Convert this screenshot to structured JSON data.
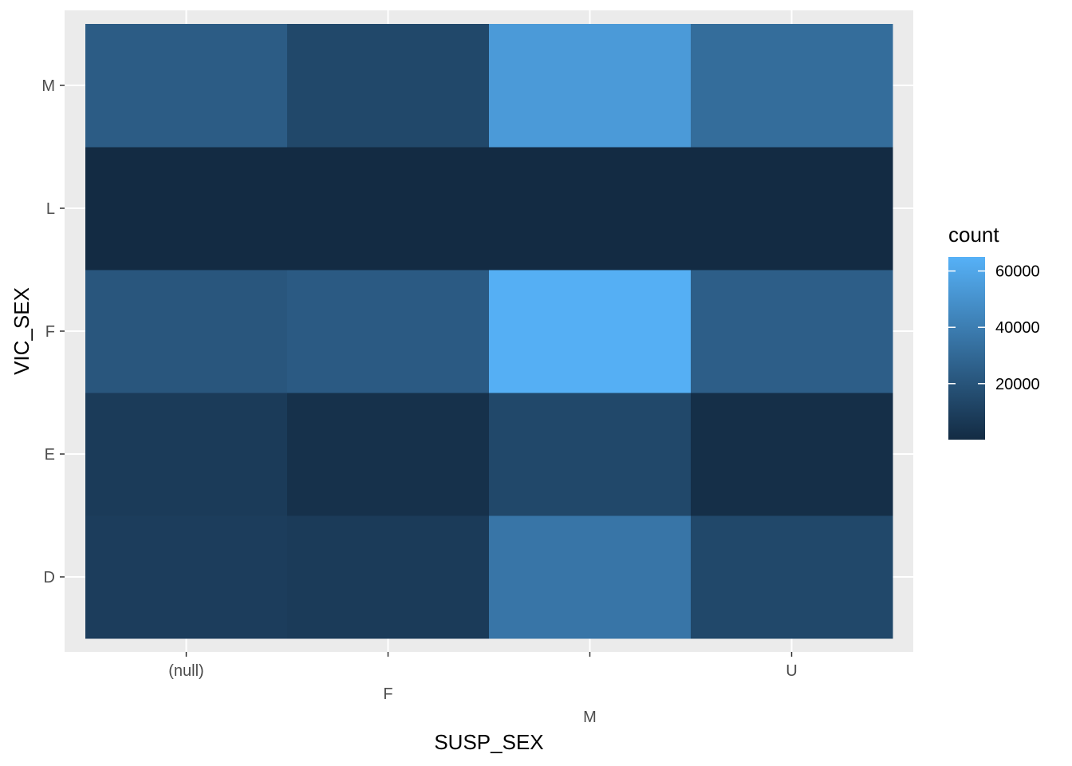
{
  "chart_data": {
    "type": "heatmap",
    "xlabel": "SUSP_SEX",
    "ylabel": "VIC_SEX",
    "x_categories": [
      "(null)",
      "F",
      "M",
      "U"
    ],
    "y_categories": [
      "D",
      "E",
      "F",
      "L",
      "M"
    ],
    "values": {
      "M": [
        24000,
        14000,
        54000,
        32000
      ],
      "L": [
        100,
        100,
        100,
        100
      ],
      "F": [
        21000,
        23000,
        64000,
        25000
      ],
      "E": [
        8000,
        3000,
        14000,
        2000
      ],
      "D": [
        9000,
        8000,
        36000,
        14000
      ]
    },
    "legend": {
      "title": "count",
      "breaks": [
        20000,
        40000,
        60000
      ],
      "break_labels": [
        "20000",
        "40000",
        "60000"
      ],
      "min": 100,
      "max": 65000,
      "low_color": "#132B43",
      "high_color": "#56B1F7"
    },
    "panel_background": "#EBEBEB",
    "grid": true
  }
}
